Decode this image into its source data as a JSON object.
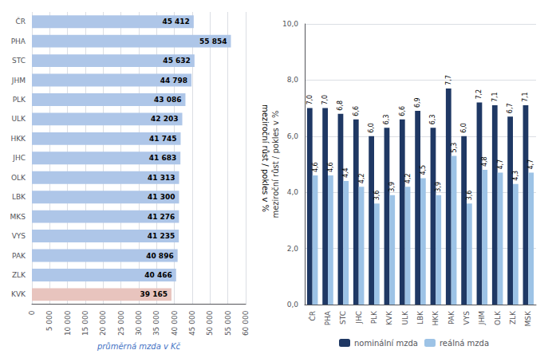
{
  "chart_data": [
    {
      "type": "bar",
      "orientation": "horizontal",
      "categories": [
        "ČR",
        "PHA",
        "STC",
        "JHM",
        "PLK",
        "ULK",
        "HKK",
        "JHC",
        "OLK",
        "LBK",
        "MKS",
        "VYS",
        "PAK",
        "ZLK",
        "KVK"
      ],
      "values": [
        45412,
        55854,
        45632,
        44798,
        43086,
        42203,
        41745,
        41683,
        41313,
        41300,
        41276,
        41235,
        40896,
        40466,
        39165
      ],
      "value_labels": [
        "45 412",
        "55 854",
        "45 632",
        "44 798",
        "43 086",
        "42 203",
        "41 745",
        "41 683",
        "41 313",
        "41 300",
        "41 276",
        "41 235",
        "40 896",
        "40 466",
        "39 165"
      ],
      "colors": [
        "#aec6e8",
        "#aec6e8",
        "#aec6e8",
        "#aec6e8",
        "#aec6e8",
        "#aec6e8",
        "#aec6e8",
        "#aec6e8",
        "#aec6e8",
        "#aec6e8",
        "#aec6e8",
        "#aec6e8",
        "#aec6e8",
        "#aec6e8",
        "#e8c4be"
      ],
      "xlabel": "průměrná mzda v Kč",
      "xlim": [
        0,
        60000
      ],
      "xticks": [
        0,
        {
          "value": 5000,
          "label": "5 000"
        },
        {
          "value": 10000,
          "label": "10 000"
        },
        {
          "value": 15000,
          "label": "15 000"
        },
        {
          "value": 20000,
          "label": "20 000"
        },
        {
          "value": 25000,
          "label": "25 000"
        },
        {
          "value": 30000,
          "label": "30 000"
        },
        {
          "value": 35000,
          "label": "35 000"
        },
        {
          "value": 40000,
          "label": "40 000"
        },
        {
          "value": 45000,
          "label": "45 000"
        },
        {
          "value": 50000,
          "label": "50 000"
        },
        {
          "value": 55000,
          "label": "55 000"
        },
        {
          "value": 60000,
          "label": "60 000"
        }
      ],
      "data_labels": true,
      "grid": true
    },
    {
      "type": "bar",
      "categories": [
        "ČR",
        "PHA",
        "STC",
        "JHC",
        "PLK",
        "KVK",
        "ULK",
        "LBK",
        "HKK",
        "PAK",
        "VYS",
        "JHM",
        "OLK",
        "ZLK",
        "MSK"
      ],
      "series": [
        {
          "name": "nominální mzda",
          "color": "#1f3864",
          "values": [
            7.0,
            7.0,
            6.8,
            6.6,
            6.0,
            6.3,
            6.6,
            6.9,
            6.3,
            7.7,
            6.0,
            7.2,
            7.1,
            6.7,
            7.1
          ],
          "value_labels": [
            "7,0",
            "7,0",
            "6,8",
            "6,6",
            "6,0",
            "6,3",
            "6,6",
            "6,9",
            "6,3",
            "7,7",
            "6,0",
            "7,2",
            "7,1",
            "6,7",
            "7,1"
          ]
        },
        {
          "name": "reálná mzda",
          "color": "#9dc3e6",
          "values": [
            4.6,
            4.6,
            4.4,
            4.2,
            3.6,
            3.9,
            4.2,
            4.5,
            3.9,
            5.3,
            3.6,
            4.8,
            4.7,
            4.3,
            4.7
          ],
          "value_labels": [
            "4,6",
            "4,6",
            "4,4",
            "4,2",
            "3,6",
            "3,9",
            "4,2",
            "4,5",
            "3,9",
            "5,3",
            "3,6",
            "4,8",
            "4,7",
            "4,3",
            "4,7"
          ]
        }
      ],
      "ylabel": "meziroční růst / pokles v %",
      "annotations": [
        "meziroční růst / pokles v %"
      ],
      "ylim": [
        0,
        10
      ],
      "yticks": [
        {
          "value": 0,
          "label": "0,0"
        },
        {
          "value": 2,
          "label": "2,0"
        },
        {
          "value": 4,
          "label": "4,0"
        },
        {
          "value": 6,
          "label": "6,0"
        },
        {
          "value": 8,
          "label": "8,0"
        },
        {
          "value": 10,
          "label": "10,0"
        }
      ],
      "data_labels": true,
      "grid": true,
      "legend": "bottom"
    }
  ]
}
